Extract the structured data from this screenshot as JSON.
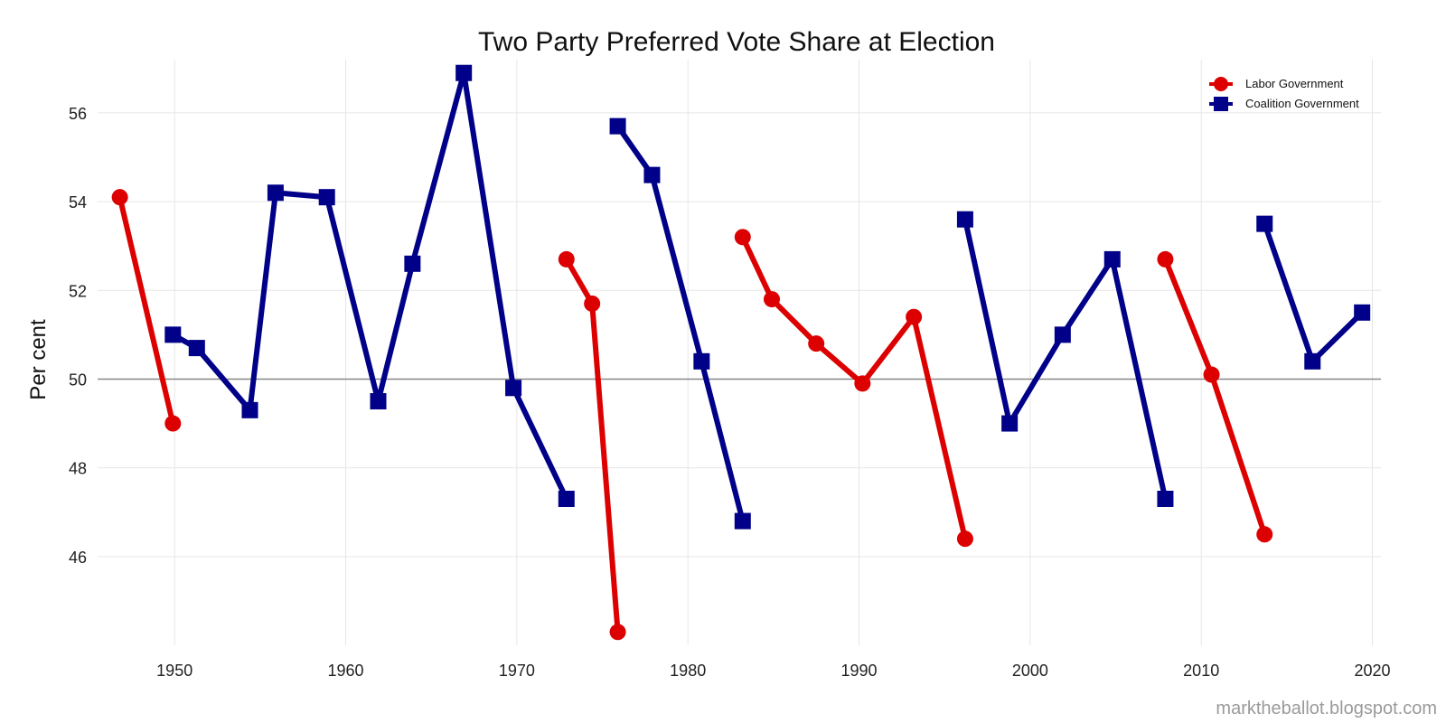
{
  "chart_data": {
    "type": "line",
    "title": "Two Party Preferred Vote Share at Election",
    "xlabel": "",
    "ylabel": "Per cent",
    "xlim": [
      1945.5,
      2020.5
    ],
    "ylim": [
      44.0,
      57.2
    ],
    "x_ticks": [
      1950,
      1960,
      1970,
      1980,
      1990,
      2000,
      2010,
      2020
    ],
    "y_ticks": [
      46,
      48,
      50,
      52,
      54,
      56
    ],
    "reference_line": 50,
    "grid": true,
    "legend_position": "top-right",
    "colors": {
      "labor": "#dd0000",
      "coalition": "#000088",
      "reference": "#888888",
      "grid": "#e6e6e6"
    },
    "series": [
      {
        "name": "Labor Government",
        "marker": "circle",
        "color": "#dd0000",
        "segments": [
          [
            [
              1946.8,
              54.1
            ],
            [
              1949.9,
              49.0
            ]
          ],
          [
            [
              1972.9,
              52.7
            ],
            [
              1974.4,
              51.7
            ],
            [
              1975.9,
              44.3
            ]
          ],
          [
            [
              1983.2,
              53.2
            ],
            [
              1984.9,
              51.8
            ],
            [
              1987.5,
              50.8
            ],
            [
              1990.2,
              49.9
            ],
            [
              1993.2,
              51.4
            ],
            [
              1996.2,
              46.4
            ]
          ],
          [
            [
              2007.9,
              52.7
            ],
            [
              2010.6,
              50.1
            ],
            [
              2013.7,
              46.5
            ]
          ]
        ]
      },
      {
        "name": "Coalition Government",
        "marker": "square",
        "color": "#000088",
        "segments": [
          [
            [
              1949.9,
              51.0
            ],
            [
              1951.3,
              50.7
            ],
            [
              1954.4,
              49.3
            ],
            [
              1955.9,
              54.2
            ],
            [
              1958.9,
              54.1
            ],
            [
              1961.9,
              49.5
            ],
            [
              1963.9,
              52.6
            ],
            [
              1966.9,
              56.9
            ],
            [
              1969.8,
              49.8
            ],
            [
              1972.9,
              47.3
            ]
          ],
          [
            [
              1975.9,
              55.7
            ],
            [
              1977.9,
              54.6
            ],
            [
              1980.8,
              50.4
            ],
            [
              1983.2,
              46.8
            ]
          ],
          [
            [
              1996.2,
              53.6
            ],
            [
              1998.8,
              49.0
            ],
            [
              2001.9,
              51.0
            ],
            [
              2004.8,
              52.7
            ],
            [
              2007.9,
              47.3
            ]
          ],
          [
            [
              2013.7,
              53.5
            ],
            [
              2016.5,
              50.4
            ],
            [
              2019.4,
              51.5
            ]
          ]
        ]
      }
    ]
  },
  "credit": "marktheballot.blogspot.com"
}
